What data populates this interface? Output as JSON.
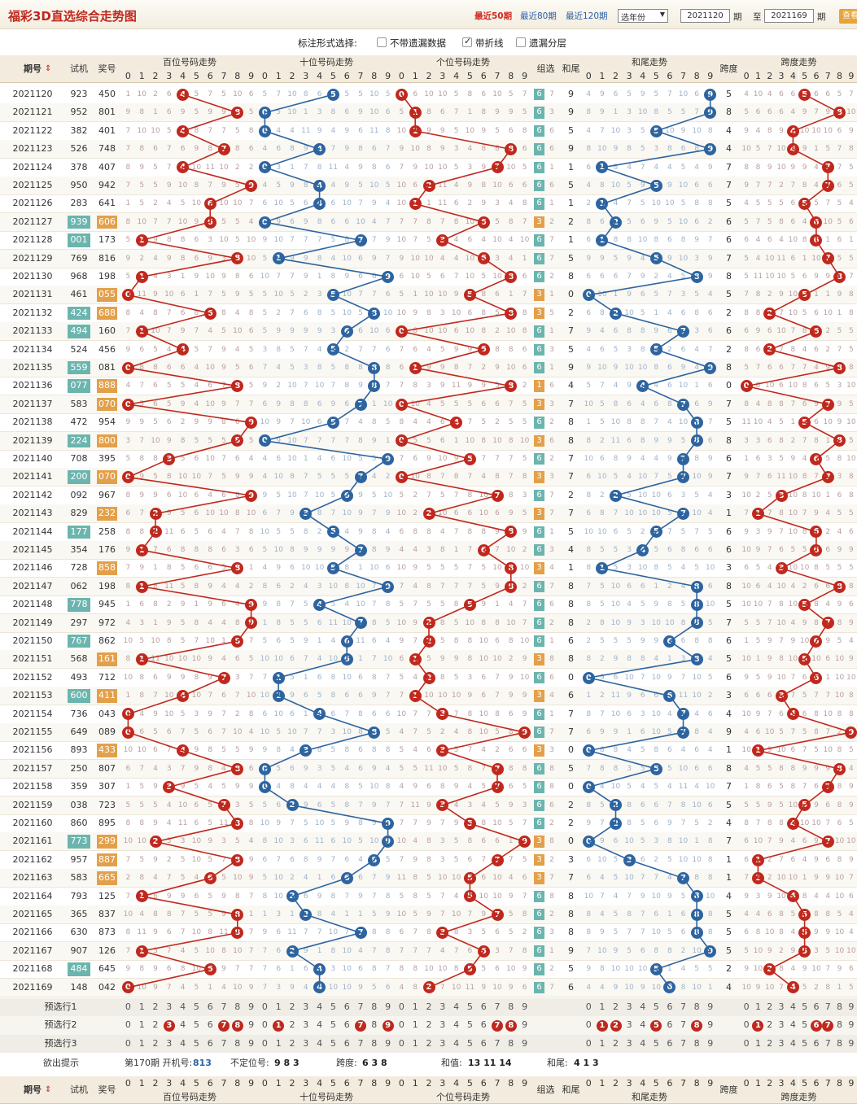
{
  "header": {
    "title": "福彩3D直选综合走势图",
    "quick_links": [
      "最近50期",
      "最近80期",
      "最近120期"
    ],
    "year_select": "选年份",
    "from_value": "2021120",
    "period1": "期",
    "to_label": "至",
    "to_value": "2021169",
    "period2": "期",
    "query": "查看"
  },
  "options": {
    "label": "标注形式选择:",
    "items": [
      {
        "label": "不带遗漏数据",
        "checked": false
      },
      {
        "label": "带折线",
        "checked": true
      },
      {
        "label": "遗漏分层",
        "checked": false
      }
    ]
  },
  "columns": {
    "issue": "期号",
    "trial": "试机",
    "prize": "奖号",
    "bai": "百位号码走势",
    "shi": "十位号码走势",
    "ge": "个位号码走势",
    "group": "组选",
    "hesum": "和尾",
    "hewei": "和尾走势",
    "span": "跨度",
    "spantrend": "跨度走势"
  },
  "colors": {
    "red": "#c0281e",
    "blue": "#2d64a0",
    "tag_green": "#6bb5ae",
    "tag_orange": "#e3a04a",
    "header_bg": "#f3ecde"
  },
  "rows": [
    {
      "issue": "2021120",
      "trial": "923",
      "prize": "450",
      "g": "6",
      "sum": "9",
      "span": "5",
      "tt": 0,
      "pt": 0
    },
    {
      "issue": "2021121",
      "trial": "952",
      "prize": "801",
      "g": "6",
      "sum": "9",
      "span": "8",
      "tt": 0,
      "pt": 0
    },
    {
      "issue": "2021122",
      "trial": "382",
      "prize": "401",
      "g": "6",
      "sum": "5",
      "span": "4",
      "tt": 0,
      "pt": 0
    },
    {
      "issue": "2021123",
      "trial": "526",
      "prize": "748",
      "g": "6",
      "sum": "9",
      "span": "4",
      "tt": 0,
      "pt": 0
    },
    {
      "issue": "2021124",
      "trial": "378",
      "prize": "407",
      "g": "6",
      "sum": "1",
      "span": "7",
      "tt": 0,
      "pt": 0
    },
    {
      "issue": "2021125",
      "trial": "950",
      "prize": "942",
      "g": "6",
      "sum": "5",
      "span": "7",
      "tt": 0,
      "pt": 0
    },
    {
      "issue": "2021126",
      "trial": "283",
      "prize": "641",
      "g": "6",
      "sum": "1",
      "span": "5",
      "tt": 0,
      "pt": 0
    },
    {
      "issue": "2021127",
      "trial": "939",
      "prize": "606",
      "g": "3",
      "sum": "2",
      "span": "6",
      "tt": 1,
      "pt": 2
    },
    {
      "issue": "2021128",
      "trial": "001",
      "prize": "173",
      "g": "6",
      "sum": "1",
      "span": "6",
      "tt": 1,
      "pt": 0
    },
    {
      "issue": "2021129",
      "trial": "769",
      "prize": "816",
      "g": "6",
      "sum": "5",
      "span": "7",
      "tt": 0,
      "pt": 0
    },
    {
      "issue": "2021130",
      "trial": "968",
      "prize": "198",
      "g": "6",
      "sum": "8",
      "span": "8",
      "tt": 0,
      "pt": 0
    },
    {
      "issue": "2021131",
      "trial": "461",
      "prize": "055",
      "g": "3",
      "sum": "0",
      "span": "5",
      "tt": 0,
      "pt": 2
    },
    {
      "issue": "2021132",
      "trial": "424",
      "prize": "688",
      "g": "3",
      "sum": "2",
      "span": "2",
      "tt": 1,
      "pt": 2
    },
    {
      "issue": "2021133",
      "trial": "494",
      "prize": "160",
      "g": "6",
      "sum": "7",
      "span": "6",
      "tt": 1,
      "pt": 0
    },
    {
      "issue": "2021134",
      "trial": "524",
      "prize": "456",
      "g": "6",
      "sum": "5",
      "span": "2",
      "tt": 0,
      "pt": 0
    },
    {
      "issue": "2021135",
      "trial": "559",
      "prize": "081",
      "g": "6",
      "sum": "9",
      "span": "8",
      "tt": 1,
      "pt": 0
    },
    {
      "issue": "2021136",
      "trial": "077",
      "prize": "888",
      "g": "1",
      "sum": "4",
      "span": "0",
      "tt": 1,
      "pt": 2
    },
    {
      "issue": "2021137",
      "trial": "583",
      "prize": "070",
      "g": "3",
      "sum": "7",
      "span": "7",
      "tt": 0,
      "pt": 2
    },
    {
      "issue": "2021138",
      "trial": "472",
      "prize": "954",
      "g": "6",
      "sum": "8",
      "span": "5",
      "tt": 0,
      "pt": 0
    },
    {
      "issue": "2021139",
      "trial": "224",
      "prize": "800",
      "g": "3",
      "sum": "8",
      "span": "8",
      "tt": 1,
      "pt": 2
    },
    {
      "issue": "2021140",
      "trial": "708",
      "prize": "395",
      "g": "6",
      "sum": "7",
      "span": "6",
      "tt": 0,
      "pt": 0
    },
    {
      "issue": "2021141",
      "trial": "200",
      "prize": "070",
      "g": "3",
      "sum": "7",
      "span": "7",
      "tt": 1,
      "pt": 2
    },
    {
      "issue": "2021142",
      "trial": "092",
      "prize": "967",
      "g": "6",
      "sum": "2",
      "span": "3",
      "tt": 0,
      "pt": 0
    },
    {
      "issue": "2021143",
      "trial": "829",
      "prize": "232",
      "g": "3",
      "sum": "7",
      "span": "1",
      "tt": 0,
      "pt": 2
    },
    {
      "issue": "2021144",
      "trial": "177",
      "prize": "258",
      "g": "6",
      "sum": "5",
      "span": "6",
      "tt": 1,
      "pt": 0
    },
    {
      "issue": "2021145",
      "trial": "354",
      "prize": "176",
      "g": "6",
      "sum": "4",
      "span": "6",
      "tt": 0,
      "pt": 0
    },
    {
      "issue": "2021146",
      "trial": "728",
      "prize": "858",
      "g": "3",
      "sum": "1",
      "span": "3",
      "tt": 0,
      "pt": 2
    },
    {
      "issue": "2021147",
      "trial": "062",
      "prize": "198",
      "g": "6",
      "sum": "8",
      "span": "8",
      "tt": 0,
      "pt": 0
    },
    {
      "issue": "2021148",
      "trial": "778",
      "prize": "945",
      "g": "6",
      "sum": "8",
      "span": "5",
      "tt": 1,
      "pt": 0
    },
    {
      "issue": "2021149",
      "trial": "297",
      "prize": "972",
      "g": "6",
      "sum": "8",
      "span": "7",
      "tt": 0,
      "pt": 0
    },
    {
      "issue": "2021150",
      "trial": "767",
      "prize": "862",
      "g": "6",
      "sum": "6",
      "span": "6",
      "tt": 1,
      "pt": 0
    },
    {
      "issue": "2021151",
      "trial": "568",
      "prize": "161",
      "g": "3",
      "sum": "8",
      "span": "5",
      "tt": 0,
      "pt": 2
    },
    {
      "issue": "2021152",
      "trial": "493",
      "prize": "712",
      "g": "6",
      "sum": "0",
      "span": "6",
      "tt": 0,
      "pt": 0
    },
    {
      "issue": "2021153",
      "trial": "600",
      "prize": "411",
      "g": "3",
      "sum": "6",
      "span": "3",
      "tt": 1,
      "pt": 2
    },
    {
      "issue": "2021154",
      "trial": "736",
      "prize": "043",
      "g": "6",
      "sum": "7",
      "span": "4",
      "tt": 0,
      "pt": 0
    },
    {
      "issue": "2021155",
      "trial": "649",
      "prize": "089",
      "g": "6",
      "sum": "7",
      "span": "9",
      "tt": 0,
      "pt": 0
    },
    {
      "issue": "2021156",
      "trial": "893",
      "prize": "433",
      "g": "3",
      "sum": "0",
      "span": "1",
      "tt": 0,
      "pt": 2
    },
    {
      "issue": "2021157",
      "trial": "250",
      "prize": "807",
      "g": "6",
      "sum": "5",
      "span": "8",
      "tt": 0,
      "pt": 0
    },
    {
      "issue": "2021158",
      "trial": "359",
      "prize": "307",
      "g": "6",
      "sum": "0",
      "span": "7",
      "tt": 0,
      "pt": 0
    },
    {
      "issue": "2021159",
      "trial": "038",
      "prize": "723",
      "g": "6",
      "sum": "2",
      "span": "5",
      "tt": 0,
      "pt": 0
    },
    {
      "issue": "2021160",
      "trial": "860",
      "prize": "895",
      "g": "6",
      "sum": "2",
      "span": "4",
      "tt": 0,
      "pt": 0
    },
    {
      "issue": "2021161",
      "trial": "773",
      "prize": "299",
      "g": "3",
      "sum": "0",
      "span": "7",
      "tt": 1,
      "pt": 2
    },
    {
      "issue": "2021162",
      "trial": "957",
      "prize": "887",
      "g": "3",
      "sum": "3",
      "span": "1",
      "tt": 0,
      "pt": 2
    },
    {
      "issue": "2021163",
      "trial": "583",
      "prize": "665",
      "g": "3",
      "sum": "7",
      "span": "1",
      "tt": 0,
      "pt": 2
    },
    {
      "issue": "2021164",
      "trial": "793",
      "prize": "125",
      "g": "6",
      "sum": "8",
      "span": "4",
      "tt": 0,
      "pt": 0
    },
    {
      "issue": "2021165",
      "trial": "365",
      "prize": "837",
      "g": "6",
      "sum": "8",
      "span": "5",
      "tt": 0,
      "pt": 0
    },
    {
      "issue": "2021166",
      "trial": "630",
      "prize": "873",
      "g": "6",
      "sum": "8",
      "span": "5",
      "tt": 0,
      "pt": 0
    },
    {
      "issue": "2021167",
      "trial": "907",
      "prize": "126",
      "g": "6",
      "sum": "9",
      "span": "5",
      "tt": 0,
      "pt": 0
    },
    {
      "issue": "2021168",
      "trial": "484",
      "prize": "645",
      "g": "6",
      "sum": "5",
      "span": "2",
      "tt": 1,
      "pt": 0
    },
    {
      "issue": "2021169",
      "trial": "148",
      "prize": "042",
      "g": "6",
      "sum": "6",
      "span": "4",
      "tt": 0,
      "pt": 0
    }
  ],
  "preselect": [
    {
      "label": "预选行1",
      "bai": [],
      "shi": [],
      "ge": [],
      "hw": [],
      "span": []
    },
    {
      "label": "预选行2",
      "bai": [
        3,
        7,
        8
      ],
      "shi": [
        1,
        7,
        9
      ],
      "ge": [
        7,
        8
      ],
      "hw": [
        1,
        2,
        5,
        8
      ],
      "span": [
        1,
        6,
        7
      ]
    },
    {
      "label": "预选行3",
      "bai": [],
      "shi": [],
      "ge": [],
      "hw": [],
      "span": []
    }
  ],
  "hint": {
    "label": "欲出提示",
    "issue": "第170期 开机号:",
    "open": "813",
    "undet_label": "不定位号:",
    "undet": "9 8 3",
    "span_label": "跨度:",
    "span": "6 3 8",
    "sum_label": "和值:",
    "sum": "13 11 14",
    "tail_label": "和尾:",
    "tail": "4 1 3"
  }
}
